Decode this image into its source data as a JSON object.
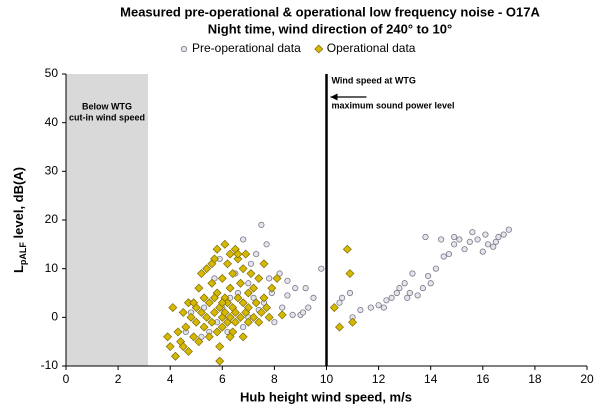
{
  "chart_data": {
    "type": "scatter",
    "title": "Measured pre-operational & operational low frequency noise - O17A",
    "subtitle": "Night time, wind direction of 240° to 10°",
    "x_label": "Hub height wind speed, m/s",
    "y_label": {
      "main": "L",
      "subscript": "pALF",
      "rest": " level, dB(A)"
    },
    "xlim": [
      0,
      20
    ],
    "xticks": [
      0,
      2,
      4,
      6,
      8,
      10,
      12,
      14,
      16,
      18,
      20
    ],
    "ylim": [
      -10,
      50
    ],
    "yticks": [
      -10,
      0,
      10,
      20,
      30,
      40,
      50
    ],
    "grid": false,
    "legend": "top",
    "shaded_region": {
      "text": [
        "Below WTG",
        "cut-in wind speed"
      ],
      "x_range": [
        0,
        3.15
      ],
      "color": "#d9d9d9"
    },
    "vertical_line": {
      "text": [
        "Wind speed at WTG",
        "maximum sound power level"
      ],
      "x": 10,
      "color": "#000000"
    },
    "series": [
      {
        "name": "Pre-operational data",
        "color": "#e4e4ec",
        "marker": "circle",
        "x": [
          11,
          11.3,
          11.7,
          12,
          12.2,
          12.5,
          12.7,
          12.8,
          13,
          13.1,
          13.2,
          13.3,
          13.5,
          13.7,
          13.9,
          14,
          14.2,
          14.5,
          14.7,
          14.9,
          15.1,
          15.3,
          15.5,
          15.8,
          16,
          16.2,
          16.4,
          16.6,
          16.8,
          17,
          13.8,
          14.4,
          15.6,
          10.6,
          10.9,
          10.5,
          12.3,
          16.5,
          16.1,
          14.9,
          7.5,
          6.8,
          7.7,
          7.3,
          7.1,
          8.2,
          8.5,
          8.8,
          9.2,
          9.5,
          9.3,
          9,
          8.7,
          8.3,
          7.9,
          7.6,
          7.4,
          7.2,
          7,
          6.6,
          6.3,
          6,
          5.8,
          5.5,
          5.2,
          5,
          4.8,
          4.6,
          5.3,
          5.7,
          6.5,
          7.8,
          8,
          9.8,
          8.5,
          7,
          6.8,
          6.2,
          5.9,
          9.1
        ],
        "values": [
          0,
          1.5,
          2,
          2.5,
          2,
          4,
          5,
          6,
          7,
          4,
          5,
          9,
          4.5,
          6,
          8.5,
          7,
          10,
          12.5,
          13,
          15,
          16,
          14,
          15.5,
          16,
          13.5,
          15,
          14.5,
          16.5,
          17,
          18,
          16.5,
          16,
          17.5,
          4,
          5,
          3,
          3.5,
          15.5,
          17,
          16.5,
          19,
          16,
          15,
          13,
          11,
          9,
          7.5,
          6,
          6,
          4,
          2,
          0.5,
          0.5,
          2,
          5,
          3,
          1.5,
          4,
          7,
          5,
          4,
          2,
          -1,
          -3,
          -4,
          -1,
          1,
          -3,
          2,
          8,
          9,
          8,
          -1,
          10,
          4.5,
          0,
          -2,
          -3,
          12,
          1
        ]
      },
      {
        "name": "Operational data",
        "color": "#d6b800",
        "marker": "diamond",
        "x": [
          3.9,
          4,
          4.1,
          4.2,
          4.3,
          4.4,
          4.5,
          4.5,
          4.6,
          4.7,
          4.7,
          4.8,
          4.9,
          5,
          5,
          5.1,
          5.1,
          5.2,
          5.3,
          5.3,
          5.4,
          5.4,
          5.5,
          5.5,
          5.6,
          5.6,
          5.7,
          5.7,
          5.8,
          5.8,
          5.8,
          5.9,
          5.9,
          5.9,
          6,
          6,
          6,
          6.1,
          6.1,
          6.1,
          6.2,
          6.2,
          6.2,
          6.3,
          6.3,
          6.3,
          6.4,
          6.4,
          6.4,
          6.5,
          6.5,
          6.5,
          6.6,
          6.6,
          6.7,
          6.7,
          6.8,
          6.8,
          6.8,
          6.9,
          6.9,
          7,
          7,
          7,
          7.1,
          7.2,
          7.2,
          7.3,
          7.4,
          7.4,
          7.5,
          7.6,
          7.6,
          7.7,
          7.8,
          5.6,
          6.6,
          5.2,
          4.9,
          6,
          6.3,
          5.7,
          10.8,
          10.9,
          10.3,
          10.5,
          11,
          8.1,
          8.3,
          7.9
        ],
        "values": [
          -4,
          -6,
          2,
          -8,
          -3,
          -5,
          1,
          -6,
          -2,
          3,
          -7,
          0,
          -4,
          2,
          -1,
          6,
          -5,
          1,
          4,
          -2,
          0,
          10,
          3,
          -4,
          7,
          -1,
          1,
          12,
          5,
          -3,
          14,
          2,
          -6,
          -9,
          0,
          8,
          -2,
          4,
          15,
          1,
          -1,
          11,
          3,
          13,
          0,
          6,
          2,
          -3,
          9,
          14,
          1,
          -1,
          4,
          12,
          0,
          7,
          3,
          -4,
          10,
          1,
          13,
          5,
          -1,
          2,
          9,
          0,
          6,
          3,
          -1,
          8,
          1,
          4,
          11,
          2,
          0,
          11,
          13,
          9,
          3,
          3,
          -4,
          4,
          14,
          9,
          2,
          -2,
          -1,
          8,
          0.5,
          6
        ]
      }
    ]
  }
}
